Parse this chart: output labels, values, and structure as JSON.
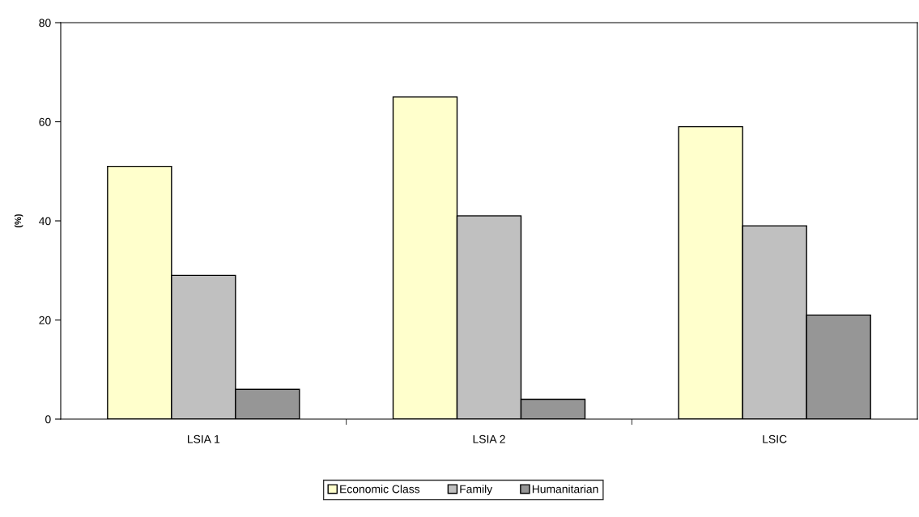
{
  "chart_data": {
    "type": "bar",
    "ylabel": "(%)",
    "categories": [
      "LSIA 1",
      "LSIA 2",
      "LSIC"
    ],
    "series": [
      {
        "name": "Economic Class",
        "color": "#ffffcc",
        "values": [
          51,
          65,
          59
        ]
      },
      {
        "name": "Family",
        "color": "#c0c0c0",
        "values": [
          29,
          41,
          39
        ]
      },
      {
        "name": "Humanitarian",
        "color": "#969696",
        "values": [
          6,
          4,
          21
        ]
      }
    ],
    "ylim": [
      0,
      80
    ],
    "yticks": [
      0,
      20,
      40,
      60,
      80
    ],
    "grid": false,
    "legend": "bottom"
  }
}
